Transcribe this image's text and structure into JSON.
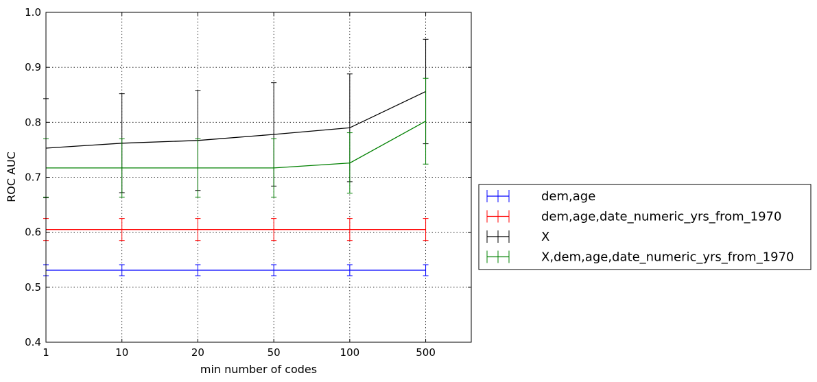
{
  "chart_data": {
    "type": "line",
    "title": "",
    "xlabel": "min number of codes",
    "ylabel": "ROC AUC",
    "x_ticks": [
      "1",
      "10",
      "20",
      "50",
      "100",
      "500"
    ],
    "x_extra_category_space": 0.6,
    "ylim": [
      0.4,
      1.0
    ],
    "y_ticks": [
      "0.4",
      "0.5",
      "0.6",
      "0.7",
      "0.8",
      "0.9",
      "1.0"
    ],
    "grid": true,
    "legend": "outside-right",
    "series": [
      {
        "name": "dem,age",
        "color": "#0000ff",
        "values": [
          0.531,
          0.531,
          0.531,
          0.531,
          0.531,
          0.531
        ],
        "err": [
          0.01,
          0.01,
          0.01,
          0.01,
          0.01,
          0.01
        ]
      },
      {
        "name": "dem,age,date_numeric_yrs_from_1970",
        "color": "#ff0000",
        "values": [
          0.605,
          0.605,
          0.605,
          0.605,
          0.605,
          0.605
        ],
        "err": [
          0.02,
          0.02,
          0.02,
          0.02,
          0.02,
          0.02
        ]
      },
      {
        "name": "X",
        "color": "#000000",
        "values": [
          0.753,
          0.762,
          0.767,
          0.778,
          0.79,
          0.856
        ],
        "err": [
          0.09,
          0.09,
          0.091,
          0.094,
          0.098,
          0.095
        ]
      },
      {
        "name": "X,dem,age,date_numeric_yrs_from_1970",
        "color": "#008000",
        "values": [
          0.717,
          0.717,
          0.717,
          0.717,
          0.726,
          0.802
        ],
        "err": [
          0.053,
          0.053,
          0.053,
          0.053,
          0.055,
          0.078
        ]
      }
    ]
  }
}
